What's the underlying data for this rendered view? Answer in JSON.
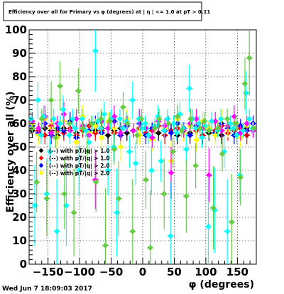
{
  "chart_data": {
    "type": "scatter",
    "title": "Efficiency over all for Primary vs φ (degrees) at | η | <= 1.0 at pT > 0.11",
    "xlabel": "φ (degrees)",
    "ylabel": "Efficiency over all (%)",
    "xlim": [
      -180,
      180
    ],
    "ylim": [
      0,
      100
    ],
    "x_ticks": [
      -150,
      -100,
      -50,
      0,
      50,
      100,
      150
    ],
    "y_ticks": [
      0,
      10,
      20,
      30,
      40,
      50,
      60,
      70,
      80,
      90,
      100
    ],
    "grid": true,
    "legend_position": "middle-left",
    "timestamp": "Wed Jun  7 18:09:03 2017",
    "series": [
      {
        "name": "(--) with pT/|q| > 1.0",
        "color": "#000000",
        "x": [
          -175,
          -165,
          -155,
          -145,
          -135,
          -125,
          -115,
          -105,
          -95,
          -85,
          -75,
          -65,
          -55,
          -45,
          -35,
          -25,
          -15,
          -5,
          5,
          15,
          25,
          35,
          45,
          55,
          65,
          75,
          85,
          95,
          105,
          115,
          125,
          135,
          145,
          155,
          165,
          175
        ],
        "y": [
          57,
          56,
          58,
          57,
          55,
          58,
          57,
          56,
          58,
          56,
          57,
          58,
          55,
          57,
          58,
          56,
          57,
          55,
          58,
          57,
          56,
          58,
          57,
          55,
          58,
          56,
          57,
          58,
          56,
          57,
          55,
          58,
          57,
          56,
          58,
          57
        ]
      },
      {
        "name": "(--) with pT/|q| > 1.0",
        "color": "#ff0000",
        "x": [
          -175,
          -165,
          -155,
          -145,
          -135,
          -125,
          -115,
          -105,
          -95,
          -85,
          -75,
          -65,
          -55,
          -45,
          -35,
          -25,
          -15,
          -5,
          5,
          15,
          25,
          35,
          45,
          55,
          65,
          75,
          85,
          95,
          105,
          115,
          125,
          135,
          145,
          155,
          165,
          175
        ],
        "y": [
          58,
          57,
          55,
          59,
          57,
          56,
          58,
          55,
          57,
          59,
          56,
          57,
          58,
          56,
          55,
          59,
          57,
          58,
          56,
          57,
          59,
          55,
          57,
          58,
          56,
          59,
          57,
          55,
          58,
          57,
          59,
          56,
          57,
          58,
          55,
          57
        ]
      },
      {
        "name": "(--) with pT/|q| > 2.0",
        "color": "#0000ff",
        "x": [
          -175,
          -165,
          -155,
          -145,
          -135,
          -125,
          -115,
          -105,
          -95,
          -85,
          -75,
          -65,
          -55,
          -45,
          -35,
          -25,
          -15,
          -5,
          5,
          15,
          25,
          35,
          45,
          55,
          65,
          75,
          85,
          95,
          105,
          115,
          125,
          135,
          145,
          155,
          165,
          175
        ],
        "y": [
          59,
          56,
          60,
          55,
          58,
          57,
          61,
          54,
          59,
          57,
          60,
          56,
          58,
          61,
          55,
          59,
          57,
          60,
          55,
          58,
          61,
          57,
          56,
          60,
          58,
          55,
          59,
          61,
          57,
          56,
          60,
          58,
          55,
          59,
          57,
          60
        ]
      },
      {
        "name": "(--) with pT/|q| > 2.0",
        "color": "#ffff00",
        "x": [
          -175,
          -165,
          -155,
          -145,
          -135,
          -125,
          -115,
          -105,
          -95,
          -85,
          -75,
          -65,
          -55,
          -45,
          -35,
          -25,
          -15,
          -5,
          5,
          15,
          25,
          35,
          45,
          55,
          65,
          75,
          85,
          95,
          105,
          115,
          125,
          135,
          145,
          155,
          165,
          175
        ],
        "y": [
          60,
          55,
          62,
          58,
          54,
          61,
          57,
          52,
          63,
          56,
          59,
          54,
          61,
          58,
          50,
          62,
          57,
          55,
          60,
          53,
          61,
          58,
          44,
          62,
          56,
          59,
          53,
          61,
          58,
          55,
          62,
          57,
          60,
          54,
          59,
          58
        ]
      },
      {
        "name": "",
        "color": "#ff00ff",
        "x": [
          -175,
          -165,
          -155,
          -145,
          -135,
          -125,
          -115,
          -105,
          -95,
          -85,
          -75,
          -65,
          -55,
          -45,
          -35,
          -25,
          -15,
          -5,
          5,
          15,
          25,
          35,
          45,
          55,
          65,
          75,
          85,
          95,
          105,
          115,
          125,
          135,
          145,
          155,
          165,
          175
        ],
        "y": [
          61,
          58,
          63,
          56,
          60,
          64,
          57,
          62,
          59,
          55,
          36,
          61,
          58,
          63,
          56,
          60,
          57,
          62,
          58,
          54,
          61,
          59,
          39,
          63,
          57,
          60,
          62,
          58,
          38,
          61,
          57,
          59,
          63,
          56,
          60,
          57
        ]
      },
      {
        "name": "",
        "color": "#00ffff",
        "x": [
          -177,
          -171,
          -166,
          -161,
          -157,
          -152,
          -147,
          -141,
          -136,
          -131,
          -126,
          -121,
          -116,
          -111,
          -107,
          -101,
          -96,
          -90,
          -85,
          -80,
          -75,
          -71,
          -66,
          -61,
          -55,
          -50,
          -46,
          -41,
          -36,
          -31,
          -26,
          -21,
          -16,
          -11,
          -6,
          -1,
          4,
          9,
          14,
          19,
          24,
          29,
          34,
          39,
          44,
          49,
          54,
          59,
          64,
          69,
          74,
          79,
          84,
          89,
          94,
          99,
          104,
          109,
          114,
          119,
          124,
          129,
          134,
          139,
          144,
          149,
          154,
          159,
          164,
          169,
          174
        ],
        "y": [
          62,
          25,
          70,
          55,
          63,
          30,
          48,
          62,
          14,
          60,
          66,
          25,
          55,
          62,
          58,
          40,
          62,
          57,
          52,
          60,
          91,
          61,
          58,
          64,
          40,
          62,
          50,
          22,
          62,
          58,
          61,
          48,
          70,
          43,
          62,
          58,
          60,
          55,
          40,
          59,
          63,
          44,
          57,
          62,
          12,
          60,
          56,
          64,
          58,
          49,
          75,
          62,
          58,
          60,
          54,
          59,
          16,
          61,
          23,
          57,
          62,
          48,
          14,
          60,
          58,
          55,
          38,
          57,
          73,
          62,
          58
        ]
      },
      {
        "name": "",
        "color": "#66cc44",
        "x": [
          -175,
          -168,
          -160,
          -152,
          -145,
          -138,
          -131,
          -124,
          -116,
          -109,
          -102,
          -95,
          -88,
          -81,
          -74,
          -66,
          -59,
          -52,
          -45,
          -38,
          -31,
          -24,
          -16,
          -9,
          -2,
          5,
          12,
          19,
          26,
          34,
          41,
          48,
          55,
          62,
          69,
          76,
          84,
          91,
          98,
          105,
          112,
          119,
          126,
          134,
          141,
          148,
          155,
          162,
          169,
          176
        ],
        "y": [
          58,
          35,
          62,
          28,
          70,
          54,
          76,
          30,
          60,
          22,
          74,
          58,
          48,
          60,
          35,
          62,
          8,
          61,
          49,
          28,
          67,
          60,
          14,
          55,
          62,
          36,
          7,
          58,
          62,
          30,
          60,
          48,
          63,
          57,
          29,
          62,
          42,
          58,
          61,
          57,
          24,
          58,
          47,
          62,
          18,
          60,
          37,
          77,
          88,
          58
        ]
      }
    ]
  }
}
